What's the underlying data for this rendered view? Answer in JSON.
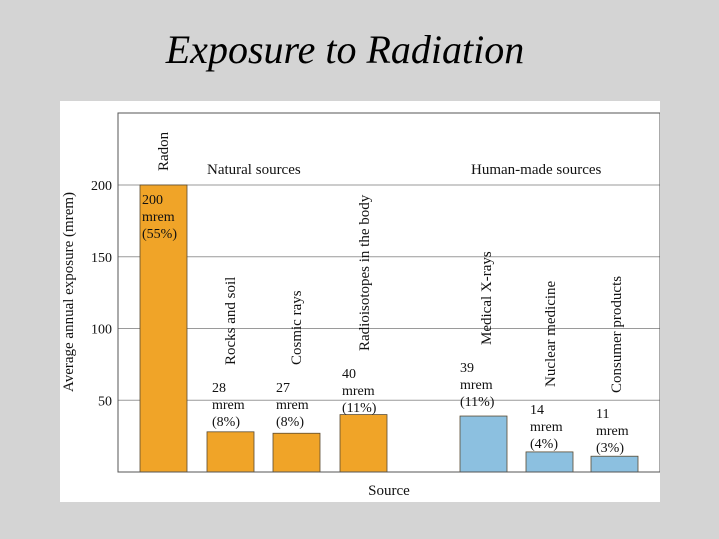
{
  "slide": {
    "title": "Exposure to Radiation"
  },
  "chart_data": {
    "type": "bar",
    "title": "",
    "xlabel": "Source",
    "ylabel": "Average annual exposure (mrem)",
    "ylim": [
      0,
      200
    ],
    "yticks": [
      50,
      100,
      150,
      200
    ],
    "grid": true,
    "groups": [
      {
        "label": "Natural sources",
        "color": "#b5761e"
      },
      {
        "label": "Human-made sources",
        "color": "#2a7a9a"
      }
    ],
    "categories": [
      "Radon",
      "Rocks and soil",
      "Cosmic rays",
      "Radioisotopes in the body",
      "Medical X-rays",
      "Nuclear medicine",
      "Consumer products"
    ],
    "values": [
      200,
      28,
      27,
      40,
      39,
      14,
      11
    ],
    "value_labels": [
      [
        "200",
        "mrem",
        "(55%)"
      ],
      [
        "28",
        "mrem",
        "(8%)"
      ],
      [
        "27",
        "mrem",
        "(8%)"
      ],
      [
        "40",
        "mrem",
        "(11%)"
      ],
      [
        "39",
        "mrem",
        "(11%)"
      ],
      [
        "14",
        "mrem",
        "(4%)"
      ],
      [
        "11",
        "mrem",
        "(3%)"
      ]
    ],
    "group_index": [
      0,
      0,
      0,
      0,
      1,
      1,
      1
    ],
    "bar_colors": [
      "#f0a428",
      "#8cc0e0"
    ]
  }
}
